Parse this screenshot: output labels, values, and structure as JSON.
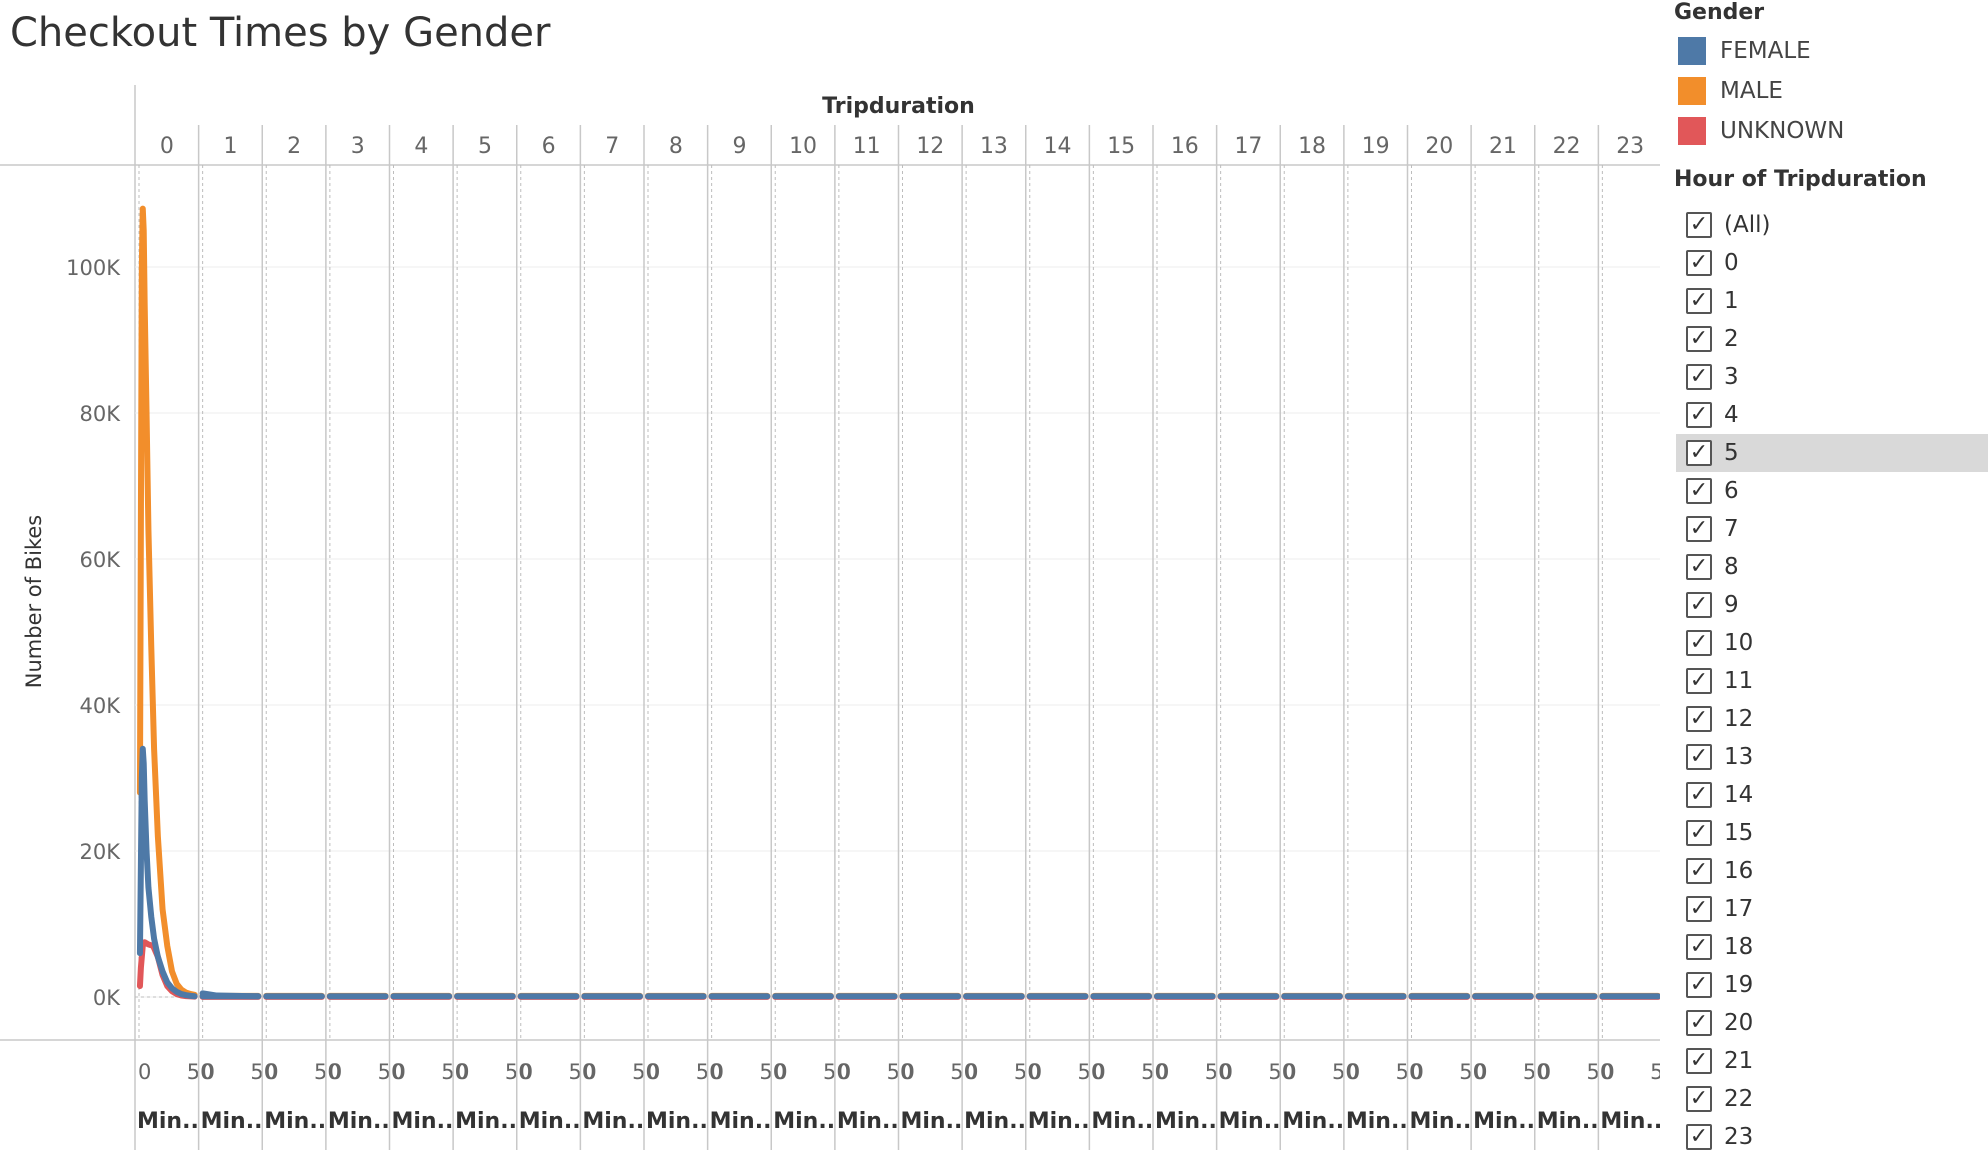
{
  "title": "Checkout Times by Gender",
  "legend": {
    "heading": "Gender",
    "items": [
      {
        "label": "FEMALE",
        "color": "#4e79a7"
      },
      {
        "label": "MALE",
        "color": "#f28e2b"
      },
      {
        "label": "UNKNOWN",
        "color": "#e15759"
      }
    ]
  },
  "filter": {
    "heading": "Hour of Tripduration",
    "selected": "5",
    "options": [
      "(All)",
      "0",
      "1",
      "2",
      "3",
      "4",
      "5",
      "6",
      "7",
      "8",
      "9",
      "10",
      "11",
      "12",
      "13",
      "14",
      "15",
      "16",
      "17",
      "18",
      "19",
      "20",
      "21",
      "22",
      "23"
    ]
  },
  "chart_data": {
    "type": "line",
    "title": "Checkout Times by Gender",
    "column_header": "Tripduration",
    "panels": [
      "0",
      "1",
      "2",
      "3",
      "4",
      "5",
      "6",
      "7",
      "8",
      "9",
      "10",
      "11",
      "12",
      "13",
      "14",
      "15",
      "16",
      "17",
      "18",
      "19",
      "20",
      "21",
      "22",
      "23"
    ],
    "panel_x_ticks": [
      "0",
      "50"
    ],
    "panel_xlabel": "Min..",
    "panel_xlim": [
      0,
      59
    ],
    "ylabel": "Number of Bikes",
    "ylim": [
      0,
      110000
    ],
    "yticks": [
      {
        "value": 0,
        "label": "0K"
      },
      {
        "value": 20000,
        "label": "20K"
      },
      {
        "value": 40000,
        "label": "40K"
      },
      {
        "value": 60000,
        "label": "60K"
      },
      {
        "value": 80000,
        "label": "80K"
      },
      {
        "value": 100000,
        "label": "100K"
      }
    ],
    "grid": true,
    "legend_position": "top-right",
    "series": [
      {
        "name": "FEMALE",
        "color": "#4e79a7",
        "hour0": [
          [
            1,
            6000
          ],
          [
            2,
            18000
          ],
          [
            3,
            30000
          ],
          [
            4,
            34000
          ],
          [
            5,
            32000
          ],
          [
            6,
            27000
          ],
          [
            8,
            20000
          ],
          [
            10,
            15000
          ],
          [
            13,
            11000
          ],
          [
            16,
            8000
          ],
          [
            20,
            5500
          ],
          [
            25,
            3500
          ],
          [
            30,
            2000
          ],
          [
            35,
            1200
          ],
          [
            40,
            700
          ],
          [
            45,
            400
          ],
          [
            50,
            250
          ],
          [
            55,
            150
          ],
          [
            59,
            100
          ]
        ],
        "other_hours": 100
      },
      {
        "name": "MALE",
        "color": "#f28e2b",
        "hour0": [
          [
            1,
            28000
          ],
          [
            2,
            65000
          ],
          [
            3,
            100000
          ],
          [
            4,
            108000
          ],
          [
            5,
            105000
          ],
          [
            6,
            95000
          ],
          [
            8,
            80000
          ],
          [
            10,
            64000
          ],
          [
            13,
            48000
          ],
          [
            16,
            34000
          ],
          [
            20,
            22000
          ],
          [
            25,
            12000
          ],
          [
            30,
            7000
          ],
          [
            35,
            3500
          ],
          [
            40,
            1800
          ],
          [
            45,
            1000
          ],
          [
            50,
            600
          ],
          [
            55,
            400
          ],
          [
            59,
            300
          ]
        ],
        "other_hours": 150
      },
      {
        "name": "UNKNOWN",
        "color": "#e15759",
        "hour0": [
          [
            1,
            1500
          ],
          [
            2,
            4000
          ],
          [
            4,
            7000
          ],
          [
            6,
            7500
          ],
          [
            10,
            7200
          ],
          [
            15,
            7000
          ],
          [
            20,
            5500
          ],
          [
            25,
            3000
          ],
          [
            30,
            1500
          ],
          [
            35,
            800
          ],
          [
            40,
            400
          ],
          [
            45,
            200
          ],
          [
            50,
            120
          ],
          [
            55,
            80
          ],
          [
            59,
            50
          ]
        ],
        "other_hours": 20
      }
    ]
  }
}
